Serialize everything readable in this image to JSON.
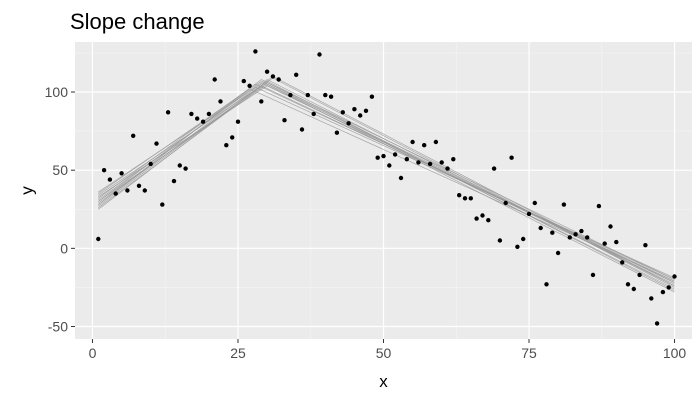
{
  "chart_data": {
    "type": "scatter",
    "title": "Slope change",
    "xlabel": "x",
    "ylabel": "y",
    "xlim": [
      -3,
      103
    ],
    "ylim": [
      -58,
      132
    ],
    "x_ticks": [
      0,
      25,
      50,
      75,
      100
    ],
    "y_ticks": [
      -50,
      0,
      50,
      100
    ],
    "x_tick_labels": [
      "0",
      "25",
      "50",
      "75",
      "100"
    ],
    "y_tick_labels": [
      "-50",
      "0",
      "50",
      "100"
    ],
    "grid": true,
    "legend": "none",
    "colors": {
      "panel_background": "#ebebeb",
      "grid_major": "#ffffff",
      "grid_minor": "#f5f5f5",
      "points": "#000000",
      "fit_lines": "#999999",
      "tick_text": "#4d4d4d"
    },
    "points": [
      {
        "x": 1,
        "y": 6
      },
      {
        "x": 2,
        "y": 50
      },
      {
        "x": 3,
        "y": 44
      },
      {
        "x": 4,
        "y": 35
      },
      {
        "x": 5,
        "y": 48
      },
      {
        "x": 6,
        "y": 37
      },
      {
        "x": 7,
        "y": 72
      },
      {
        "x": 8,
        "y": 40
      },
      {
        "x": 9,
        "y": 37
      },
      {
        "x": 10,
        "y": 54
      },
      {
        "x": 11,
        "y": 67
      },
      {
        "x": 12,
        "y": 28
      },
      {
        "x": 13,
        "y": 87
      },
      {
        "x": 14,
        "y": 43
      },
      {
        "x": 15,
        "y": 53
      },
      {
        "x": 16,
        "y": 51
      },
      {
        "x": 17,
        "y": 86
      },
      {
        "x": 18,
        "y": 83
      },
      {
        "x": 19,
        "y": 81
      },
      {
        "x": 20,
        "y": 86
      },
      {
        "x": 21,
        "y": 108
      },
      {
        "x": 22,
        "y": 94
      },
      {
        "x": 23,
        "y": 66
      },
      {
        "x": 24,
        "y": 71
      },
      {
        "x": 25,
        "y": 81
      },
      {
        "x": 26,
        "y": 107
      },
      {
        "x": 27,
        "y": 104
      },
      {
        "x": 28,
        "y": 126
      },
      {
        "x": 29,
        "y": 94
      },
      {
        "x": 30,
        "y": 113
      },
      {
        "x": 31,
        "y": 110
      },
      {
        "x": 32,
        "y": 108
      },
      {
        "x": 33,
        "y": 82
      },
      {
        "x": 34,
        "y": 98
      },
      {
        "x": 35,
        "y": 111
      },
      {
        "x": 36,
        "y": 76
      },
      {
        "x": 37,
        "y": 98
      },
      {
        "x": 38,
        "y": 86
      },
      {
        "x": 39,
        "y": 124
      },
      {
        "x": 40,
        "y": 98
      },
      {
        "x": 41,
        "y": 97
      },
      {
        "x": 42,
        "y": 74
      },
      {
        "x": 43,
        "y": 87
      },
      {
        "x": 44,
        "y": 80
      },
      {
        "x": 45,
        "y": 89
      },
      {
        "x": 46,
        "y": 85
      },
      {
        "x": 47,
        "y": 88
      },
      {
        "x": 48,
        "y": 97
      },
      {
        "x": 49,
        "y": 58
      },
      {
        "x": 50,
        "y": 59
      },
      {
        "x": 51,
        "y": 53
      },
      {
        "x": 52,
        "y": 60
      },
      {
        "x": 53,
        "y": 45
      },
      {
        "x": 54,
        "y": 57
      },
      {
        "x": 55,
        "y": 68
      },
      {
        "x": 56,
        "y": 55
      },
      {
        "x": 57,
        "y": 66
      },
      {
        "x": 58,
        "y": 54
      },
      {
        "x": 59,
        "y": 68
      },
      {
        "x": 60,
        "y": 55
      },
      {
        "x": 61,
        "y": 51
      },
      {
        "x": 62,
        "y": 57
      },
      {
        "x": 63,
        "y": 34
      },
      {
        "x": 64,
        "y": 32
      },
      {
        "x": 65,
        "y": 32
      },
      {
        "x": 66,
        "y": 19
      },
      {
        "x": 67,
        "y": 21
      },
      {
        "x": 68,
        "y": 18
      },
      {
        "x": 69,
        "y": 51
      },
      {
        "x": 70,
        "y": 5
      },
      {
        "x": 71,
        "y": 29
      },
      {
        "x": 72,
        "y": 58
      },
      {
        "x": 73,
        "y": 1
      },
      {
        "x": 74,
        "y": 6
      },
      {
        "x": 75,
        "y": 22
      },
      {
        "x": 76,
        "y": 29
      },
      {
        "x": 77,
        "y": 13
      },
      {
        "x": 78,
        "y": -23
      },
      {
        "x": 79,
        "y": 10
      },
      {
        "x": 80,
        "y": -3
      },
      {
        "x": 81,
        "y": 28
      },
      {
        "x": 82,
        "y": 7
      },
      {
        "x": 83,
        "y": 9
      },
      {
        "x": 84,
        "y": 11
      },
      {
        "x": 85,
        "y": 7
      },
      {
        "x": 86,
        "y": -17
      },
      {
        "x": 87,
        "y": 27
      },
      {
        "x": 88,
        "y": 3
      },
      {
        "x": 89,
        "y": 14
      },
      {
        "x": 90,
        "y": 4
      },
      {
        "x": 91,
        "y": -9
      },
      {
        "x": 92,
        "y": -23
      },
      {
        "x": 93,
        "y": -26
      },
      {
        "x": 94,
        "y": -17
      },
      {
        "x": 95,
        "y": 2
      },
      {
        "x": 96,
        "y": -32
      },
      {
        "x": 97,
        "y": -48
      },
      {
        "x": 98,
        "y": -28
      },
      {
        "x": 99,
        "y": -25
      },
      {
        "x": 100,
        "y": -18
      }
    ],
    "fit_lines": [
      [
        [
          1,
          30
        ],
        [
          29,
          107
        ],
        [
          100,
          -22
        ]
      ],
      [
        [
          1,
          28
        ],
        [
          30,
          108
        ],
        [
          100,
          -24
        ]
      ],
      [
        [
          1,
          32
        ],
        [
          28,
          105
        ],
        [
          100,
          -20
        ]
      ],
      [
        [
          1,
          26
        ],
        [
          30,
          106
        ],
        [
          100,
          -26
        ]
      ],
      [
        [
          1,
          34
        ],
        [
          29,
          104
        ],
        [
          100,
          -21
        ]
      ],
      [
        [
          1,
          29
        ],
        [
          31,
          109
        ],
        [
          100,
          -25
        ]
      ],
      [
        [
          1,
          36
        ],
        [
          28,
          103
        ],
        [
          100,
          -19
        ]
      ],
      [
        [
          1,
          31
        ],
        [
          29,
          106
        ],
        [
          100,
          -23
        ]
      ],
      [
        [
          1,
          27
        ],
        [
          30,
          107
        ],
        [
          100,
          -27
        ]
      ],
      [
        [
          1,
          33
        ],
        [
          30,
          104
        ],
        [
          100,
          -22
        ]
      ],
      [
        [
          1,
          25
        ],
        [
          31,
          110
        ],
        [
          100,
          -24
        ]
      ],
      [
        [
          1,
          35
        ],
        [
          27,
          102
        ],
        [
          100,
          -21
        ]
      ],
      [
        [
          1,
          30
        ],
        [
          30,
          105
        ],
        [
          100,
          -28
        ]
      ],
      [
        [
          1,
          28
        ],
        [
          29,
          108
        ],
        [
          100,
          -20
        ]
      ]
    ]
  }
}
